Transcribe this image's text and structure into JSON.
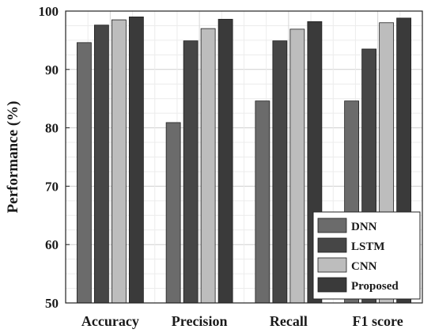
{
  "chart_data": {
    "type": "bar",
    "title": "",
    "xlabel": "",
    "ylabel": "Performance (%)",
    "ylim": [
      50,
      100
    ],
    "yticks": [
      50,
      60,
      70,
      80,
      90,
      100
    ],
    "grid": true,
    "legend_position": "bottom-right",
    "categories": [
      "Accuracy",
      "Precision",
      "Recall",
      "F1 score"
    ],
    "series": [
      {
        "name": "DNN",
        "color": "#6b6b6b",
        "values": [
          94.6,
          80.9,
          84.6,
          84.6
        ]
      },
      {
        "name": "LSTM",
        "color": "#464646",
        "values": [
          97.6,
          94.9,
          94.9,
          93.5
        ]
      },
      {
        "name": "CNN",
        "color": "#bdbdbd",
        "values": [
          98.5,
          97.0,
          96.9,
          98.0
        ]
      },
      {
        "name": "Proposed",
        "color": "#3a3a3a",
        "values": [
          99.0,
          98.6,
          98.2,
          98.8
        ]
      }
    ]
  }
}
